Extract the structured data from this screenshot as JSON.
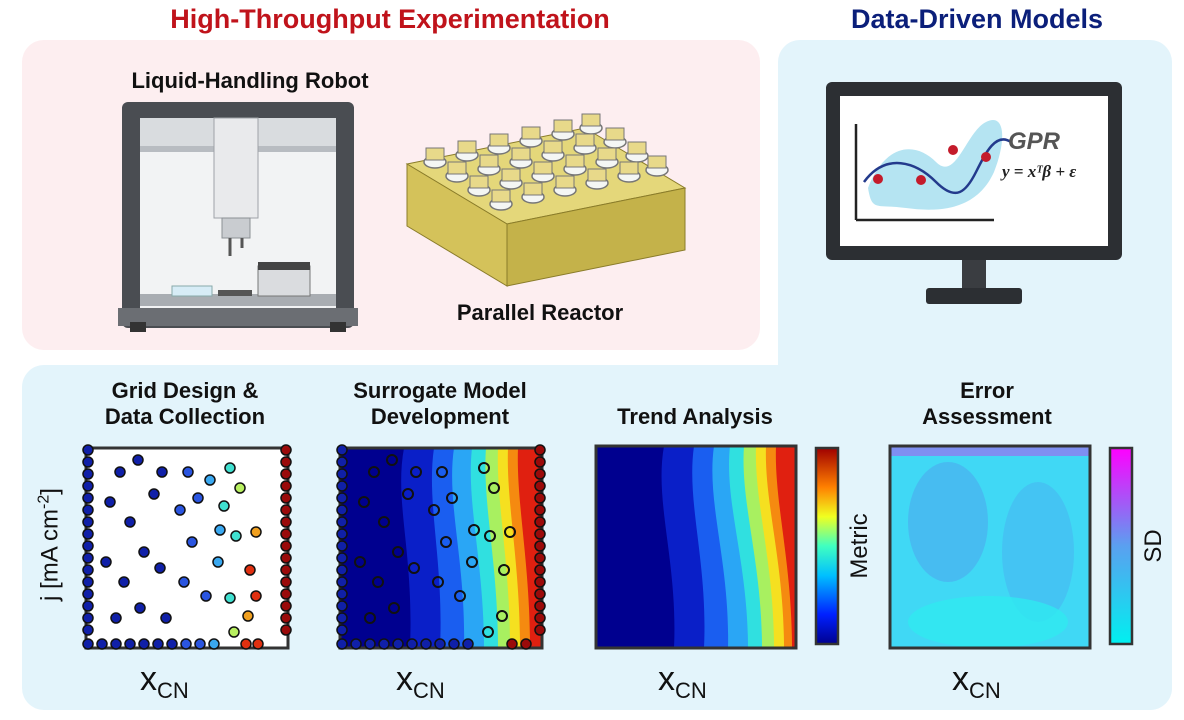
{
  "hte": {
    "title": "High-Throughput Experimentation",
    "robot_label": "Liquid-Handling Robot",
    "reactor_label": "Parallel Reactor"
  },
  "ddm": {
    "title": "Data-Driven Models",
    "gpr_title": "GPR",
    "gpr_eq": "y = xᵀβ + ε"
  },
  "steps": [
    {
      "line1": "Grid Design &",
      "line2": "Data Collection"
    },
    {
      "line1": "Surrogate Model",
      "line2": "Development"
    },
    {
      "line1": "Trend Analysis",
      "line2": ""
    },
    {
      "line1": "Error",
      "line2": "Assessment"
    }
  ],
  "axes": {
    "y_label": "j [mA cm",
    "y_sup": "-2",
    "y_close": "]",
    "x_main": "x",
    "x_sub": "CN"
  },
  "colorbars": {
    "trend": "Metric",
    "error": "SD"
  },
  "colors": {
    "hte_title": "#c0131b",
    "ddm_title": "#0b1f7a",
    "hte_bg": "#fdeef0",
    "ddm_bg": "#e3f4fb",
    "reactor": "#d4c25a"
  }
}
